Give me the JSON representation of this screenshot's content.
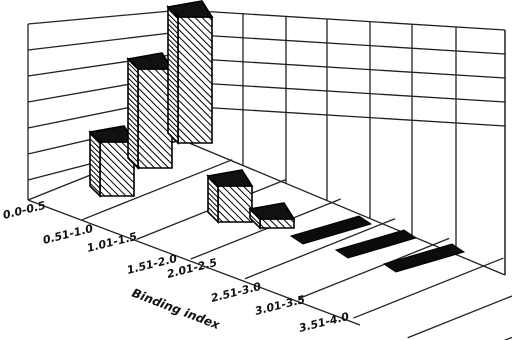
{
  "chart_data": {
    "type": "bar",
    "title": "",
    "xlabel": "Binding index",
    "ylabel": "",
    "categories": [
      "0.0-0.5",
      "0.51-1.0",
      "1.01-1.5",
      "1.51-2.0",
      "2.01-2.5",
      "2.51-3.0",
      "3.01-3.5",
      "3.51-4.0"
    ],
    "values": [
      30,
      55,
      70,
      20,
      5,
      0,
      0,
      0
    ],
    "ylim": [
      0,
      100
    ],
    "grid": true,
    "style": "3d-hatched"
  }
}
